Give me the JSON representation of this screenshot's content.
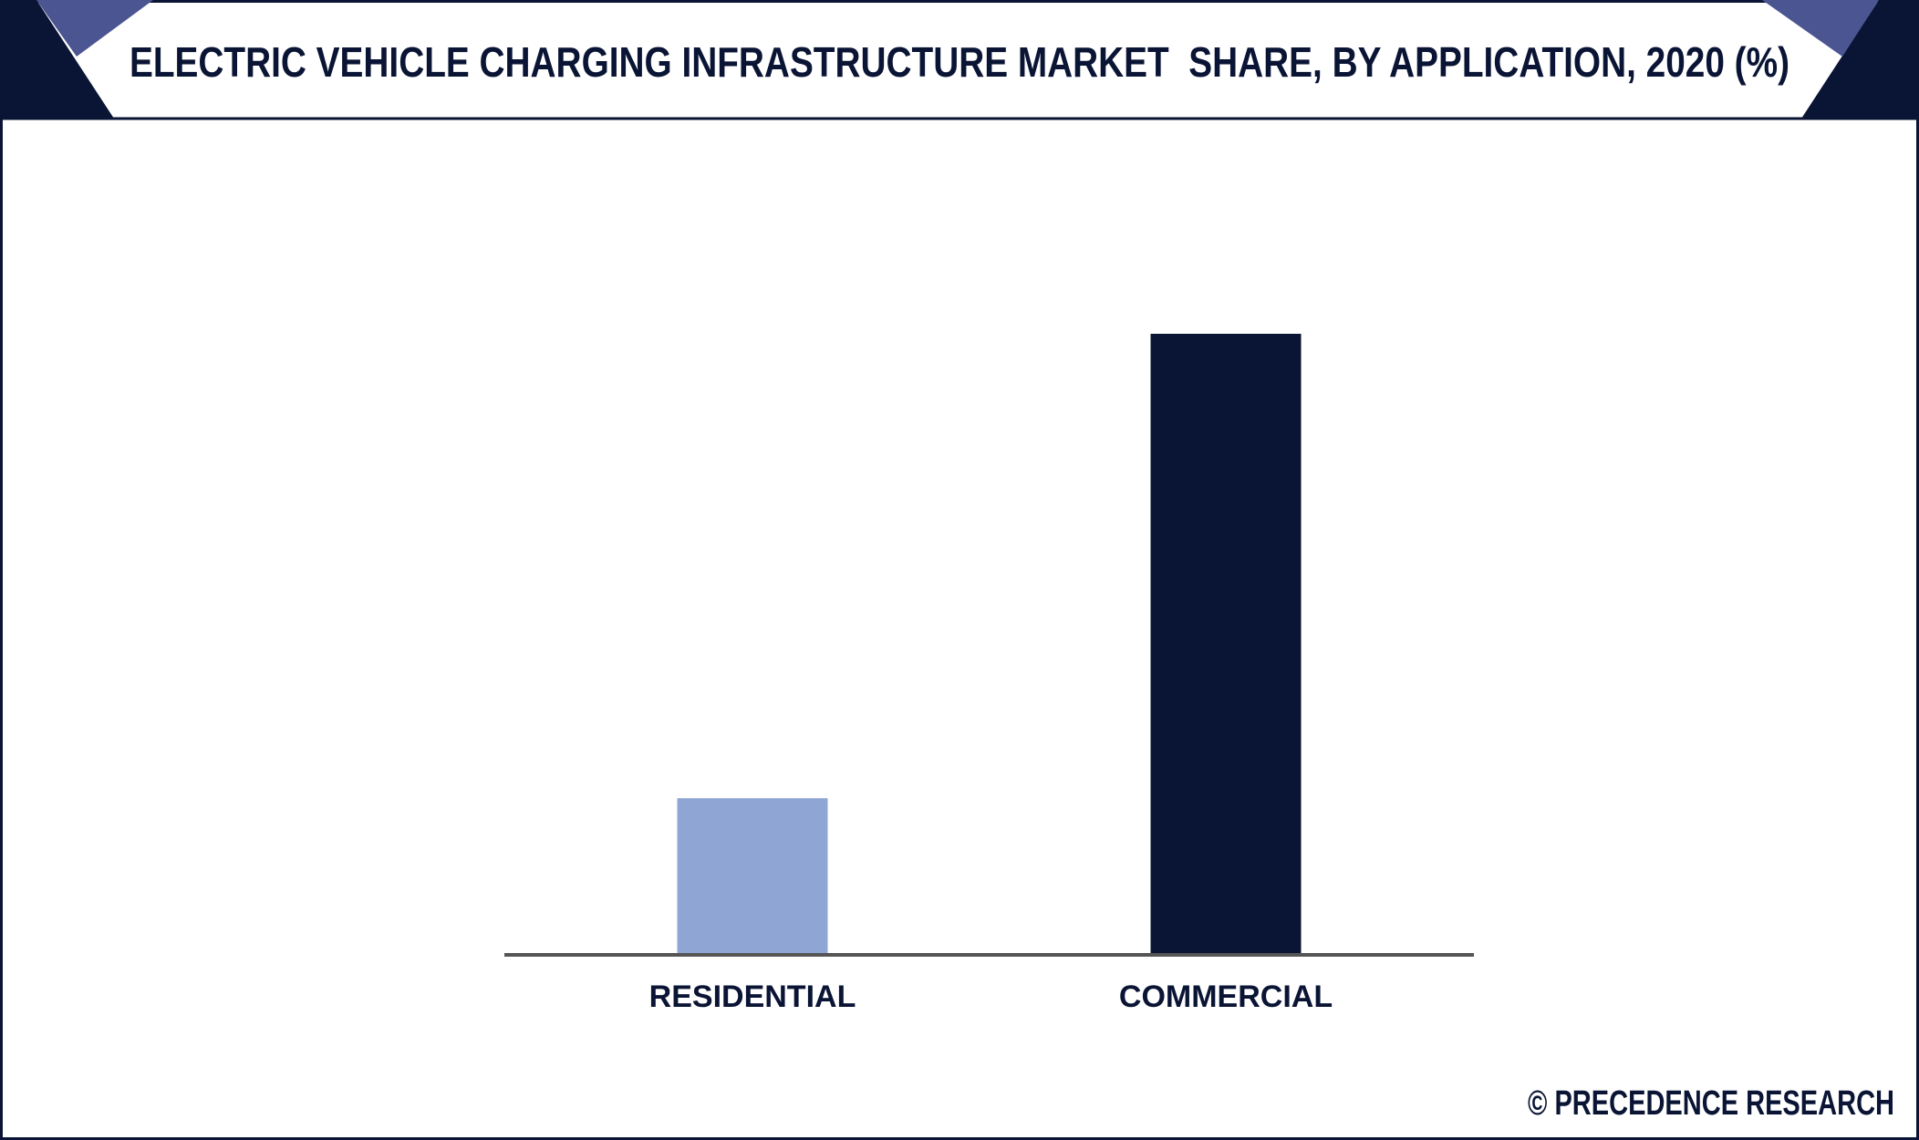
{
  "chart_data": {
    "type": "bar",
    "title": "ELECTRIC VEHICLE CHARGING INFRASTRUCTURE MARKET  SHARE, BY APPLICATION, 2020 (%)",
    "categories": [
      "RESIDENTIAL",
      "COMMERCIAL"
    ],
    "values": [
      20,
      80
    ],
    "colors": [
      "#8fa5d3",
      "#0a1434"
    ],
    "source": "© PRECEDENCE RESEARCH"
  }
}
